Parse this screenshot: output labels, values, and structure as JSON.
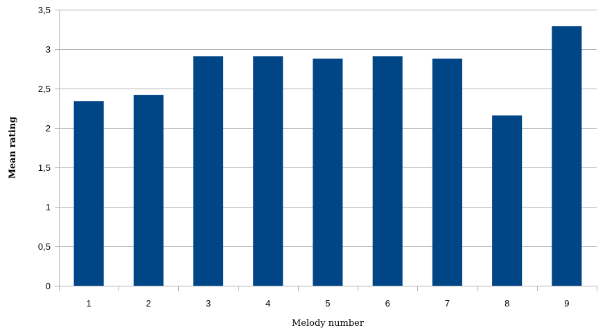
{
  "chart_data": {
    "type": "bar",
    "title": "",
    "xlabel": "Melody number",
    "ylabel": "Mean rating",
    "categories": [
      "1",
      "2",
      "3",
      "4",
      "5",
      "6",
      "7",
      "8",
      "9"
    ],
    "values": [
      2.34,
      2.42,
      2.91,
      2.91,
      2.88,
      2.91,
      2.88,
      2.16,
      3.29
    ],
    "ylim": [
      0,
      3.5
    ],
    "yticks": [
      0,
      0.5,
      1,
      1.5,
      2,
      2.5,
      3,
      3.5
    ],
    "ytick_labels": [
      "0",
      "0,5",
      "1",
      "1,5",
      "2",
      "2,5",
      "3",
      "3,5"
    ],
    "grid": "horizontal",
    "legend": "none",
    "bar_color": "#004586",
    "grid_color": "#b3b3b3"
  }
}
